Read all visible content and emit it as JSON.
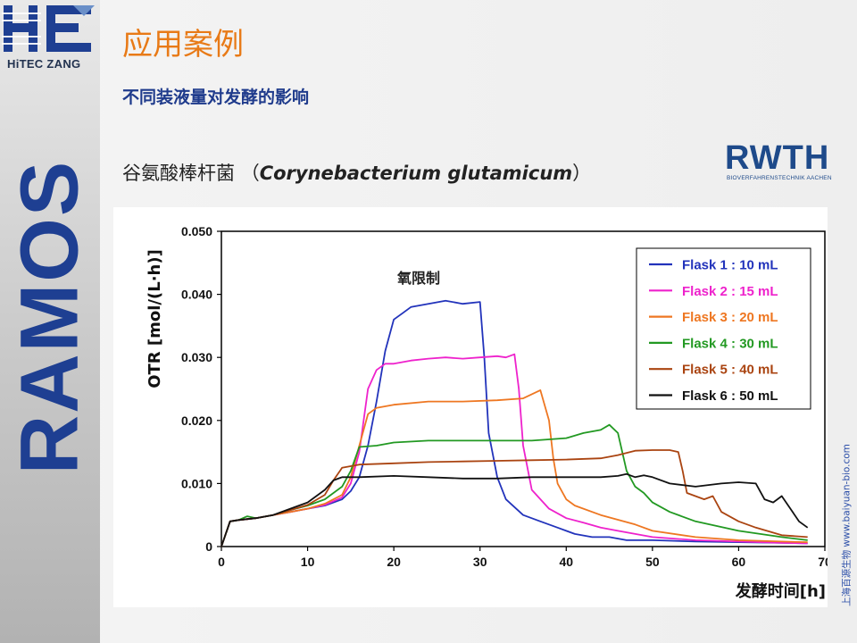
{
  "branding": {
    "company_logo_text": "HiTEC ZANG",
    "product_name": "RAMOS",
    "rwth_logo_text": "RWTH",
    "rwth_logo_subtext": "BIOVERFAHRENSTECHNIK AACHEN",
    "credit_vertical": "上海百源生物 www.baiyuan-bio.com",
    "colors": {
      "title": "#e87a17",
      "subtitle": "#1f3b8c",
      "ramos": "#1e3f92"
    }
  },
  "slide": {
    "title": "应用案例",
    "subtitle": "不同装液量对发酵的影响",
    "organism_cn": "谷氨酸棒杆菌",
    "organism_latin": "Corynebacterium glutamicum"
  },
  "chart_data": {
    "type": "line",
    "xlabel": "发酵时间[h]",
    "ylabel": "OTR [mol/(L·h)]",
    "xlim": [
      0,
      70
    ],
    "ylim": [
      0,
      0.05
    ],
    "xticks": [
      "0",
      "10",
      "20",
      "30",
      "40",
      "50",
      "60",
      "70"
    ],
    "yticks": [
      "0",
      "0.010",
      "0.020",
      "0.030",
      "0.040",
      "0.050"
    ],
    "annotation": "氧限制",
    "grid": false,
    "legend_position": "top-right",
    "series": [
      {
        "name": "Flask 1 : 10 mL",
        "color": "#2233bb",
        "x": [
          0,
          1,
          2,
          4,
          6,
          8,
          10,
          12,
          14,
          15,
          16,
          17,
          18,
          19,
          20,
          21,
          22,
          24,
          26,
          28,
          30,
          30.5,
          31,
          32,
          33,
          35,
          37,
          39,
          41,
          43,
          45,
          47,
          50,
          55,
          60,
          65,
          68
        ],
        "y": [
          0,
          0.004,
          0.0042,
          0.0045,
          0.005,
          0.0055,
          0.006,
          0.0065,
          0.0075,
          0.0088,
          0.011,
          0.016,
          0.023,
          0.031,
          0.036,
          0.037,
          0.038,
          0.0385,
          0.039,
          0.0385,
          0.0388,
          0.03,
          0.018,
          0.011,
          0.0075,
          0.005,
          0.004,
          0.003,
          0.002,
          0.0015,
          0.0015,
          0.001,
          0.001,
          0.0008,
          0.0007,
          0.0006,
          0.0005
        ]
      },
      {
        "name": "Flask 2 : 15 mL",
        "color": "#ee22cc",
        "x": [
          0,
          1,
          2,
          4,
          6,
          8,
          10,
          12,
          14,
          15,
          16,
          17,
          18,
          19,
          20,
          22,
          24,
          26,
          28,
          30,
          32,
          33,
          34,
          34.5,
          35,
          36,
          38,
          40,
          42,
          44,
          46,
          50,
          55,
          60,
          65,
          68
        ],
        "y": [
          0,
          0.004,
          0.0042,
          0.0045,
          0.005,
          0.0055,
          0.006,
          0.0066,
          0.0078,
          0.01,
          0.015,
          0.025,
          0.028,
          0.029,
          0.029,
          0.0295,
          0.0298,
          0.03,
          0.0298,
          0.03,
          0.0302,
          0.03,
          0.0305,
          0.025,
          0.016,
          0.009,
          0.006,
          0.0045,
          0.0038,
          0.003,
          0.0025,
          0.0015,
          0.001,
          0.0008,
          0.0006,
          0.0005
        ]
      },
      {
        "name": "Flask 3 : 20 mL",
        "color": "#ee7722",
        "x": [
          0,
          1,
          2,
          4,
          6,
          8,
          10,
          12,
          14,
          15,
          16,
          17,
          18,
          20,
          24,
          28,
          32,
          35,
          37,
          38,
          38.5,
          39,
          40,
          41,
          44,
          48,
          50,
          55,
          60,
          65,
          68
        ],
        "y": [
          0,
          0.004,
          0.0042,
          0.0045,
          0.005,
          0.0055,
          0.006,
          0.0068,
          0.0082,
          0.011,
          0.016,
          0.021,
          0.022,
          0.0225,
          0.023,
          0.023,
          0.0232,
          0.0235,
          0.0248,
          0.02,
          0.014,
          0.01,
          0.0075,
          0.0065,
          0.005,
          0.0035,
          0.0025,
          0.0015,
          0.001,
          0.0008,
          0.0007
        ]
      },
      {
        "name": "Flask 4 : 30 mL",
        "color": "#229922",
        "x": [
          0,
          1,
          2,
          3,
          4,
          6,
          8,
          10,
          12,
          14,
          15,
          16,
          18,
          20,
          24,
          28,
          32,
          36,
          40,
          42,
          44,
          45,
          46,
          47,
          48,
          49,
          50,
          52,
          55,
          60,
          65,
          68
        ],
        "y": [
          0,
          0.004,
          0.0042,
          0.0048,
          0.0045,
          0.005,
          0.0058,
          0.0065,
          0.0075,
          0.0095,
          0.012,
          0.0158,
          0.016,
          0.0165,
          0.0168,
          0.0168,
          0.0168,
          0.0168,
          0.0172,
          0.018,
          0.0185,
          0.0193,
          0.018,
          0.012,
          0.0095,
          0.0085,
          0.007,
          0.0055,
          0.004,
          0.0025,
          0.0015,
          0.001
        ]
      },
      {
        "name": "Flask 5 : 40 mL",
        "color": "#aa4411",
        "x": [
          0,
          1,
          2,
          4,
          6,
          8,
          10,
          12,
          13,
          14,
          16,
          20,
          24,
          28,
          32,
          36,
          40,
          44,
          46,
          48,
          50,
          52,
          53,
          53.5,
          54,
          56,
          57,
          58,
          60,
          62,
          65,
          68
        ],
        "y": [
          0,
          0.004,
          0.0042,
          0.0045,
          0.005,
          0.0058,
          0.0066,
          0.0082,
          0.0105,
          0.0125,
          0.013,
          0.0132,
          0.0134,
          0.0135,
          0.0136,
          0.0137,
          0.0138,
          0.014,
          0.0145,
          0.0152,
          0.0153,
          0.0153,
          0.015,
          0.012,
          0.0085,
          0.0075,
          0.008,
          0.0055,
          0.004,
          0.003,
          0.0018,
          0.0015
        ]
      },
      {
        "name": "Flask 6 : 50 mL",
        "color": "#111111",
        "x": [
          0,
          1,
          2,
          4,
          6,
          8,
          10,
          12,
          13,
          14,
          16,
          20,
          24,
          28,
          32,
          36,
          40,
          44,
          46,
          47,
          48,
          49,
          50,
          52,
          55,
          58,
          60,
          62,
          63,
          64,
          65,
          66,
          67,
          68
        ],
        "y": [
          0,
          0.004,
          0.0042,
          0.0045,
          0.005,
          0.006,
          0.007,
          0.009,
          0.0105,
          0.011,
          0.011,
          0.0112,
          0.011,
          0.0108,
          0.0108,
          0.011,
          0.011,
          0.011,
          0.0112,
          0.0115,
          0.011,
          0.0113,
          0.011,
          0.01,
          0.0095,
          0.01,
          0.0102,
          0.01,
          0.0075,
          0.007,
          0.008,
          0.006,
          0.004,
          0.003
        ]
      }
    ]
  }
}
